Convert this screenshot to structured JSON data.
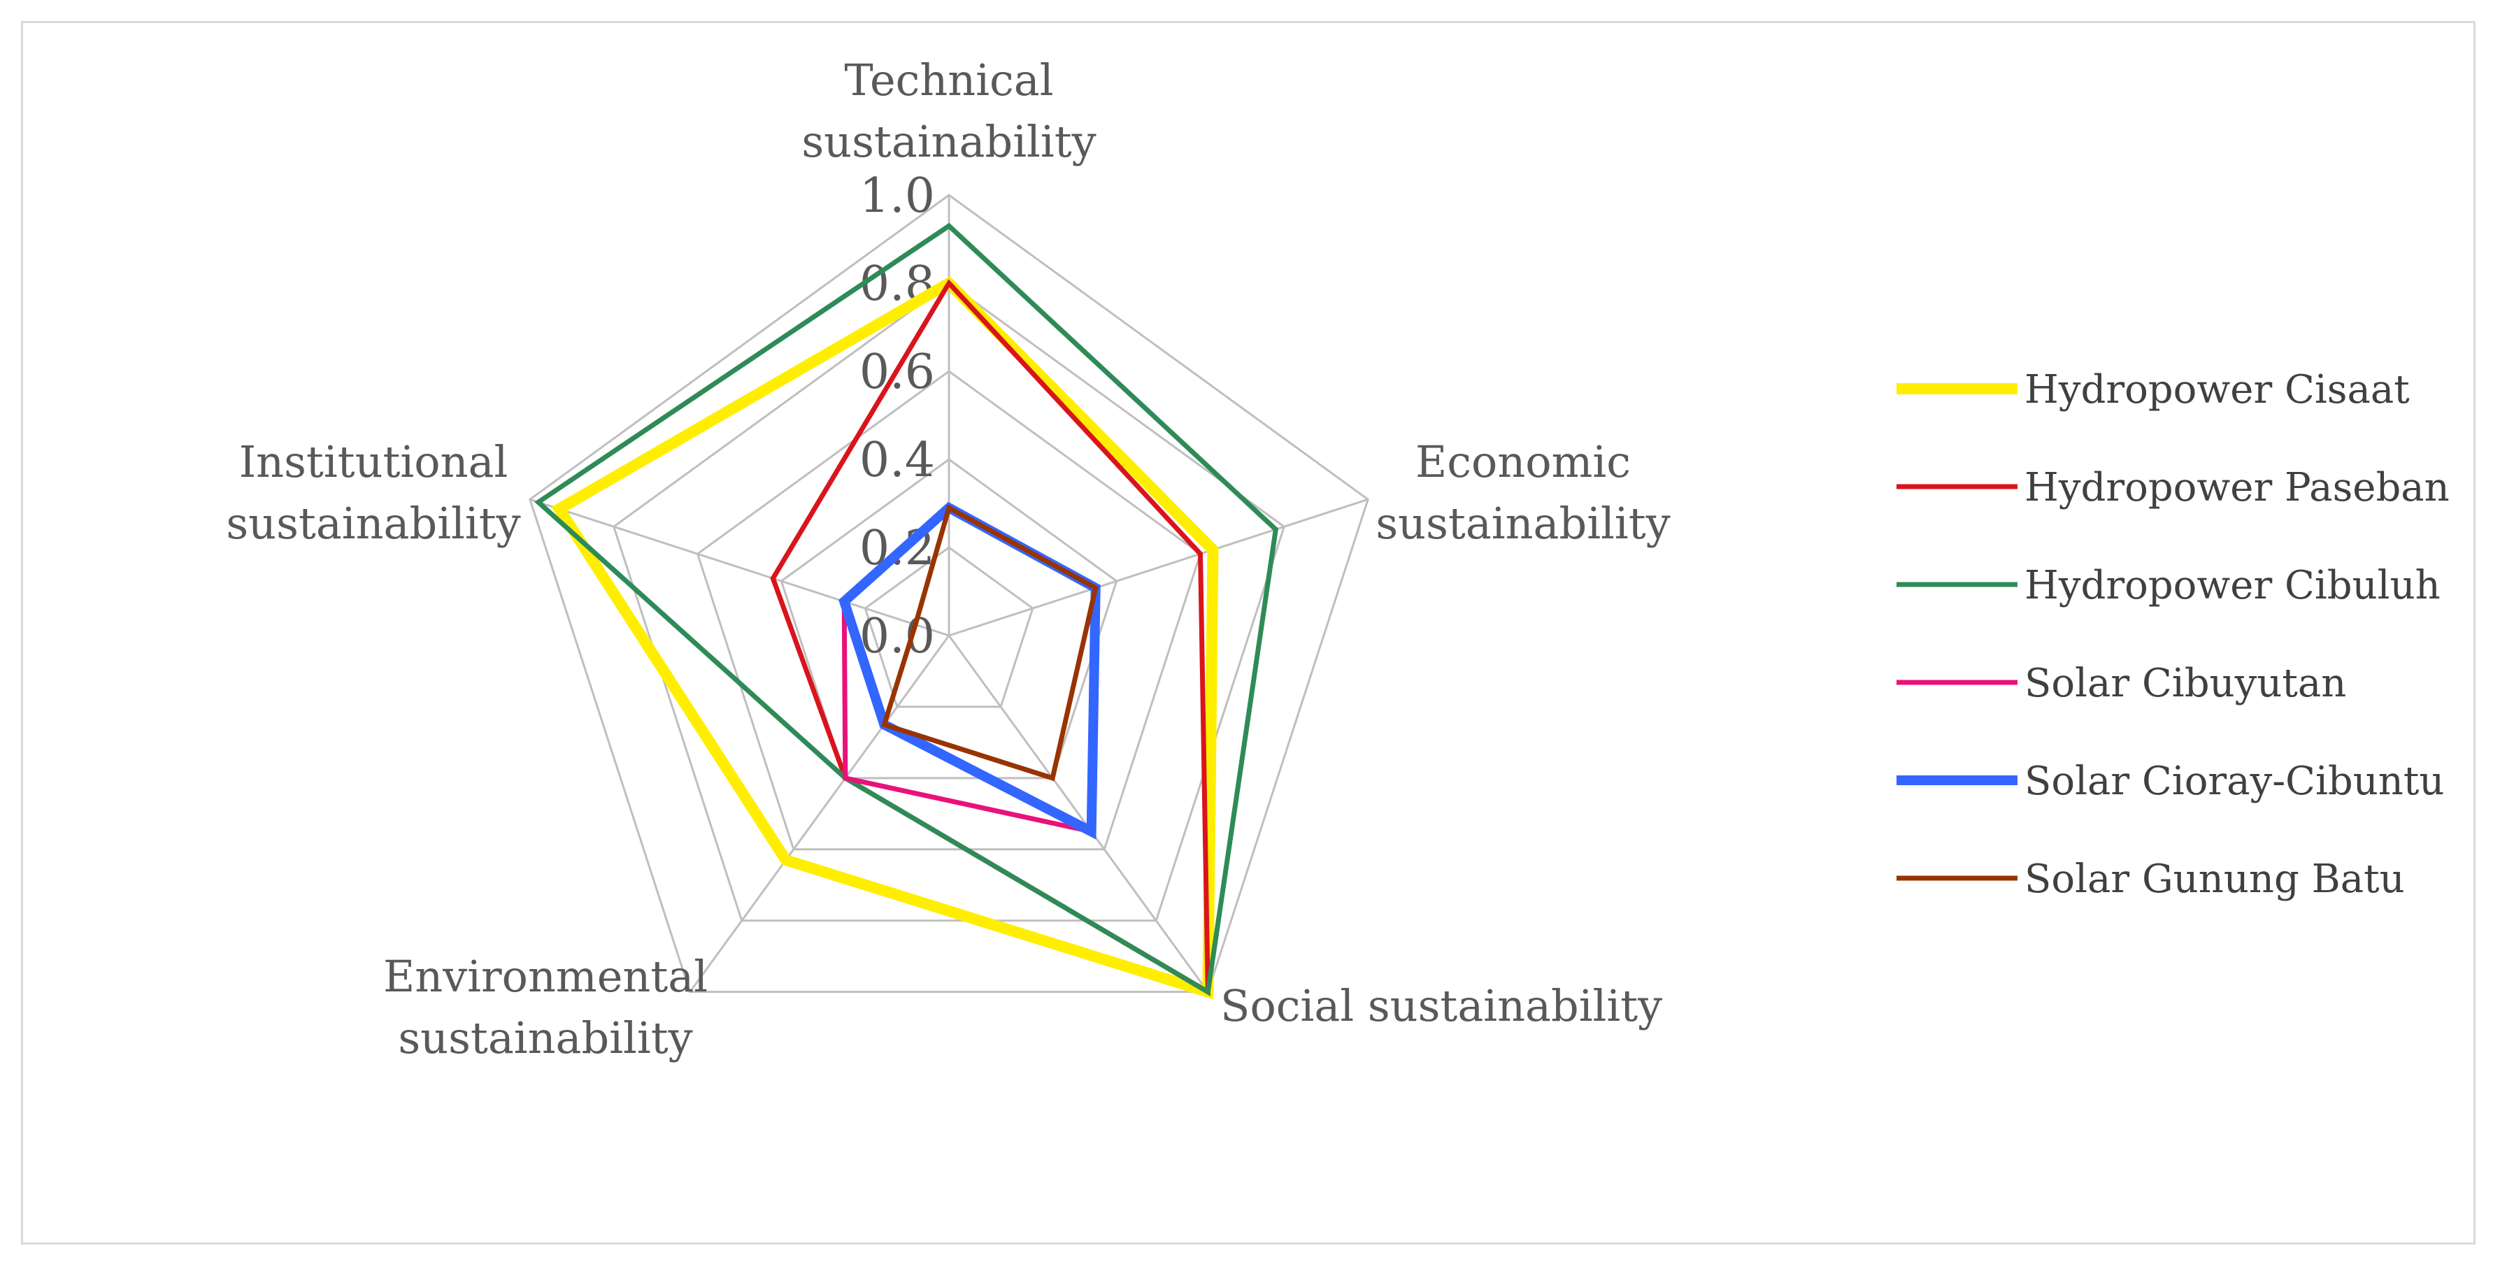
{
  "chart_data": {
    "type": "radar",
    "title": "",
    "axes": [
      [
        "Technical",
        "sustainability"
      ],
      [
        "Economic",
        "sustainability"
      ],
      [
        "Social sustainability"
      ],
      [
        "Environmental",
        "sustainability"
      ],
      [
        "Institutional",
        "sustainability"
      ]
    ],
    "r_range": [
      0,
      1.0
    ],
    "ticks": [
      "0.0",
      "0.2",
      "0.4",
      "0.6",
      "0.8",
      "1.0"
    ],
    "tick_values": [
      0,
      0.2,
      0.4,
      0.6,
      0.8,
      1.0
    ],
    "legend_position": "right",
    "series": [
      {
        "name": "Hydropower Cisaat",
        "color": "#ffee00",
        "width": 16,
        "values": [
          0.8,
          0.63,
          1.0,
          0.63,
          0.93
        ]
      },
      {
        "name": "Hydropower Paseban",
        "color": "#d9141c",
        "width": 7,
        "values": [
          0.8,
          0.6,
          1.0,
          0.4,
          0.42
        ]
      },
      {
        "name": "Hydropower Cibuluh",
        "color": "#2e8b57",
        "width": 7,
        "values": [
          0.93,
          0.78,
          1.0,
          0.4,
          0.98
        ]
      },
      {
        "name": "Solar Cibuyutan",
        "color": "#e8127a",
        "width": 7,
        "values": [
          0.29,
          0.35,
          0.55,
          0.4,
          0.25
        ]
      },
      {
        "name": "Solar Cioray-Cibuntu",
        "color": "#3366ff",
        "width": 14,
        "values": [
          0.29,
          0.35,
          0.55,
          0.25,
          0.25
        ]
      },
      {
        "name": "Solar Gunung Batu",
        "color": "#993300",
        "width": 7,
        "values": [
          0.29,
          0.35,
          0.4,
          0.25,
          0.08
        ]
      }
    ]
  }
}
